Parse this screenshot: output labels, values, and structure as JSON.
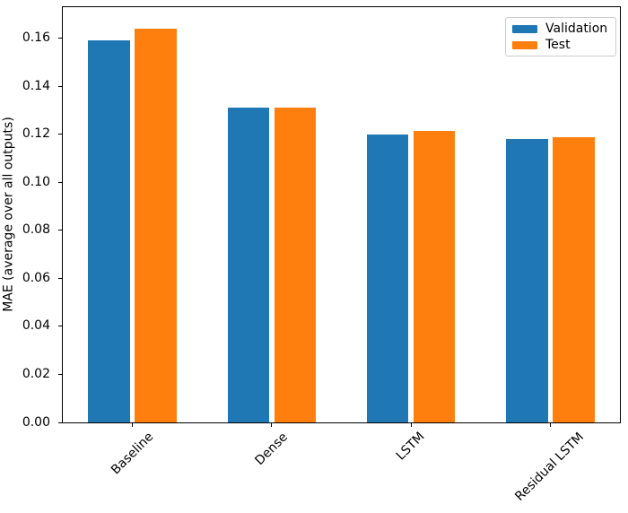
{
  "chart_data": {
    "type": "bar",
    "categories": [
      "Baseline",
      "Dense",
      "LSTM",
      "Residual LSTM"
    ],
    "series": [
      {
        "name": "Validation",
        "color": "#1f77b4",
        "values": [
          0.159,
          0.131,
          0.12,
          0.118
        ]
      },
      {
        "name": "Test",
        "color": "#ff7f0e",
        "values": [
          0.164,
          0.131,
          0.1215,
          0.119
        ]
      }
    ],
    "title": "",
    "xlabel": "",
    "ylabel": "MAE (average over all outputs)",
    "ylim": [
      0,
      0.173
    ],
    "yticks": [
      0.0,
      0.02,
      0.04,
      0.06,
      0.08,
      0.1,
      0.12,
      0.14,
      0.16
    ],
    "ytick_decimals": 2,
    "grid": false,
    "legend_position": "upper right",
    "x_tick_rotation_deg": 45,
    "bar_width_fraction": 0.3,
    "bar_offset_fraction": 0.168,
    "axis_color": "#000000",
    "text_color": "#000000",
    "background_color": "#ffffff",
    "legend_border_color": "#cccccc"
  }
}
